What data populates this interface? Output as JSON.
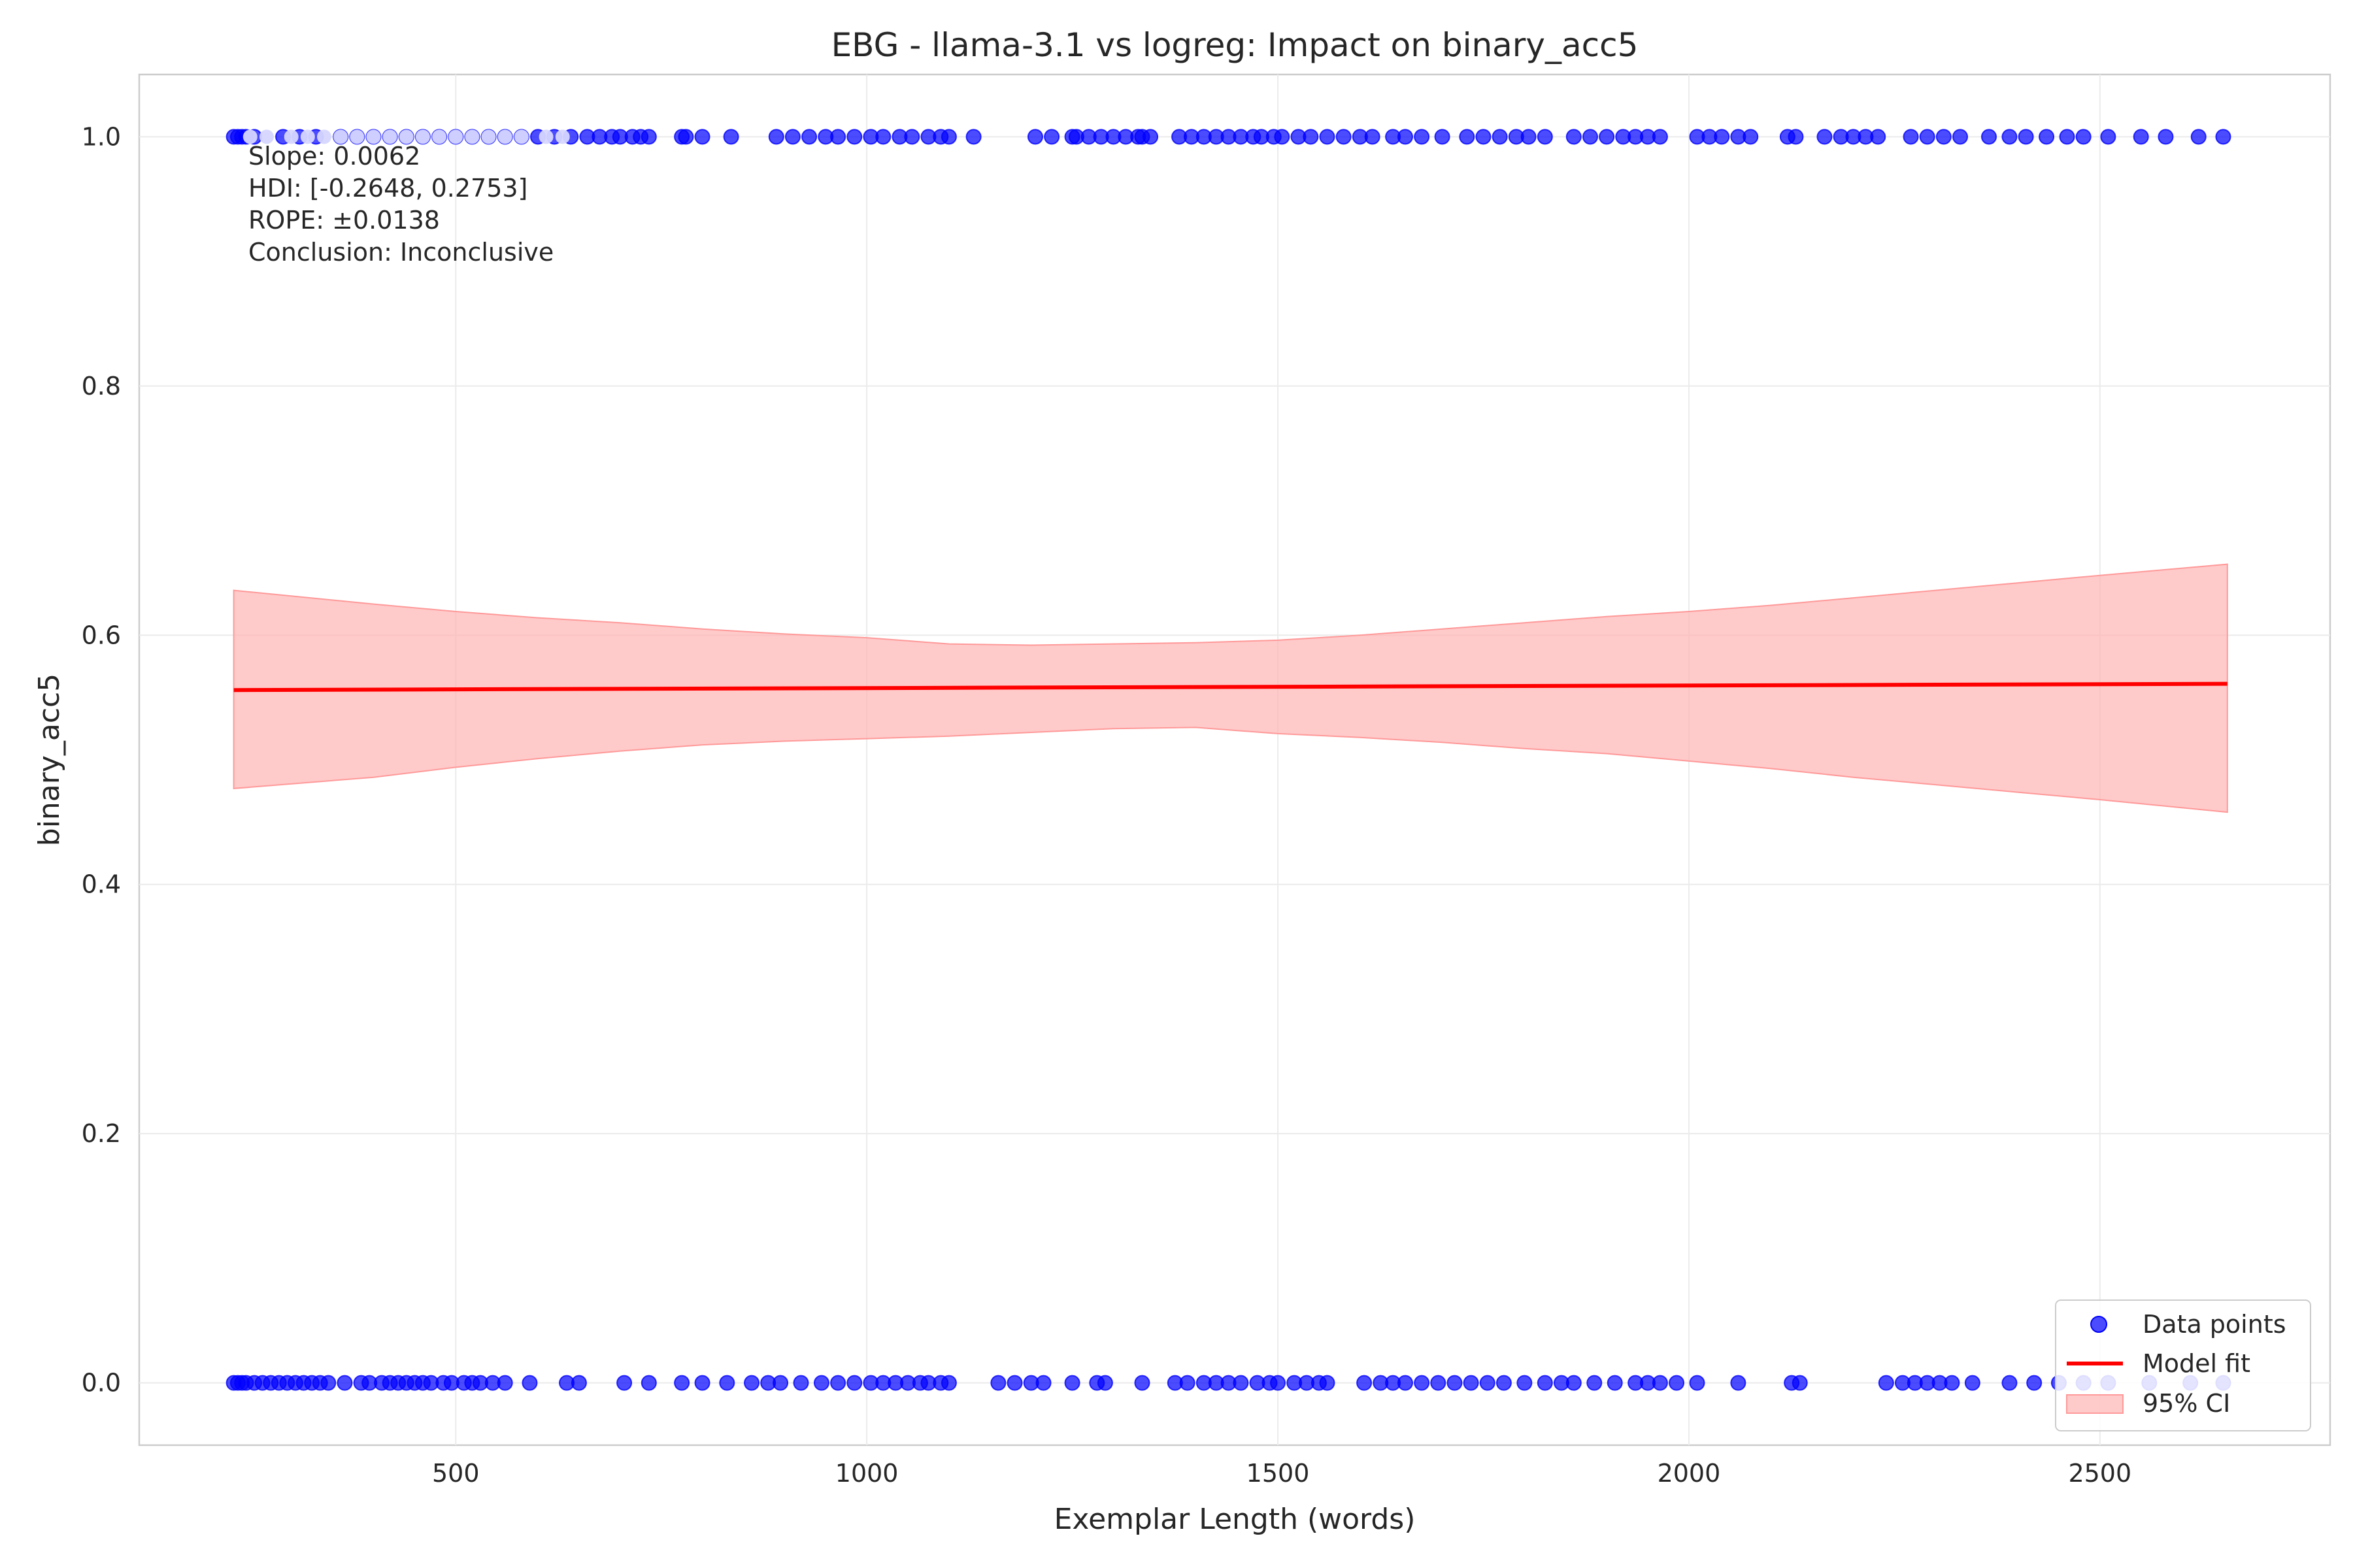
{
  "chart_data": {
    "type": "scatter",
    "title": "EBG - llama-3.1 vs logreg: Impact on binary_acc5",
    "xlabel": "Exemplar Length (words)",
    "ylabel": "binary_acc5",
    "xlim": [
      115,
      2780
    ],
    "ylim": [
      -0.05,
      1.05
    ],
    "xticks": [
      500,
      1000,
      1500,
      2000,
      2500
    ],
    "xtick_labels": [
      "500",
      "1000",
      "1500",
      "2000",
      "2500"
    ],
    "yticks": [
      0.0,
      0.2,
      0.4,
      0.6,
      0.8,
      1.0
    ],
    "ytick_labels": [
      "0.0",
      "0.2",
      "0.4",
      "0.6",
      "0.8",
      "1.0"
    ],
    "grid": true,
    "legend_position": "bottom-right",
    "colors": {
      "points": "#0000ff",
      "fit": "#ff0000",
      "ci": "#ffb3b3"
    },
    "annotation": [
      "Slope: 0.0062",
      "HDI: [-0.2648, 0.2753]",
      "ROPE: ±0.0138",
      "Conclusion: Inconclusive"
    ],
    "series": [
      {
        "name": "Data points",
        "type": "scatter",
        "points_y1_x": [
          230,
          235,
          240,
          245,
          255,
          290,
          310,
          330,
          360,
          380,
          400,
          420,
          440,
          460,
          480,
          500,
          520,
          540,
          560,
          580,
          600,
          620,
          640,
          660,
          675,
          690,
          700,
          715,
          725,
          735,
          775,
          780,
          800,
          835,
          890,
          910,
          930,
          950,
          965,
          985,
          1005,
          1020,
          1040,
          1055,
          1075,
          1090,
          1100,
          1130,
          1205,
          1225,
          1250,
          1255,
          1270,
          1285,
          1300,
          1315,
          1330,
          1335,
          1345,
          1380,
          1395,
          1410,
          1425,
          1440,
          1455,
          1470,
          1480,
          1495,
          1505,
          1525,
          1540,
          1560,
          1580,
          1600,
          1615,
          1640,
          1655,
          1675,
          1700,
          1730,
          1750,
          1770,
          1790,
          1805,
          1825,
          1860,
          1880,
          1900,
          1920,
          1935,
          1950,
          1965,
          2010,
          2025,
          2040,
          2060,
          2075,
          2120,
          2130,
          2165,
          2185,
          2200,
          2215,
          2230,
          2270,
          2290,
          2310,
          2330,
          2365,
          2390,
          2410,
          2435,
          2460,
          2480,
          2510,
          2550,
          2580,
          2620,
          2650
        ],
        "points_y0_x": [
          230,
          235,
          240,
          245,
          255,
          265,
          275,
          285,
          295,
          305,
          315,
          325,
          335,
          345,
          365,
          385,
          395,
          410,
          420,
          430,
          440,
          450,
          460,
          470,
          485,
          495,
          510,
          520,
          530,
          545,
          560,
          590,
          635,
          650,
          705,
          735,
          775,
          800,
          830,
          860,
          880,
          895,
          920,
          945,
          965,
          985,
          1005,
          1020,
          1035,
          1050,
          1065,
          1075,
          1090,
          1100,
          1160,
          1180,
          1200,
          1215,
          1250,
          1280,
          1290,
          1335,
          1375,
          1390,
          1410,
          1425,
          1440,
          1455,
          1475,
          1490,
          1500,
          1520,
          1535,
          1550,
          1560,
          1605,
          1625,
          1640,
          1655,
          1675,
          1695,
          1715,
          1735,
          1755,
          1775,
          1800,
          1825,
          1845,
          1860,
          1885,
          1910,
          1935,
          1950,
          1965,
          1985,
          2010,
          2060,
          2125,
          2135,
          2240,
          2260,
          2275,
          2290,
          2305,
          2320,
          2345,
          2390,
          2420,
          2450,
          2480,
          2510,
          2560,
          2610,
          2650
        ],
        "faded_top_x": [
          250,
          270,
          300,
          320,
          340,
          360,
          380,
          400,
          420,
          440,
          460,
          480,
          500,
          520,
          540,
          560,
          580,
          610,
          630
        ]
      },
      {
        "name": "Model fit",
        "type": "line",
        "x": [
          230,
          2655
        ],
        "y": [
          0.556,
          0.561
        ]
      },
      {
        "name": "95% CI",
        "type": "band",
        "x": [
          230,
          400,
          500,
          600,
          700,
          800,
          900,
          1000,
          1100,
          1200,
          1300,
          1400,
          1500,
          1600,
          1700,
          1800,
          1900,
          2000,
          2100,
          2200,
          2300,
          2400,
          2500,
          2655
        ],
        "upper": [
          0.636,
          0.625,
          0.619,
          0.614,
          0.61,
          0.605,
          0.601,
          0.598,
          0.593,
          0.592,
          0.593,
          0.594,
          0.596,
          0.6,
          0.605,
          0.61,
          0.615,
          0.619,
          0.624,
          0.63,
          0.636,
          0.642,
          0.648,
          0.657
        ],
        "lower": [
          0.477,
          0.486,
          0.494,
          0.501,
          0.507,
          0.512,
          0.515,
          0.517,
          0.519,
          0.522,
          0.525,
          0.526,
          0.521,
          0.518,
          0.514,
          0.509,
          0.505,
          0.499,
          0.493,
          0.486,
          0.48,
          0.474,
          0.468,
          0.458
        ]
      }
    ],
    "legend": [
      "Data points",
      "Model fit",
      "95% CI"
    ]
  }
}
